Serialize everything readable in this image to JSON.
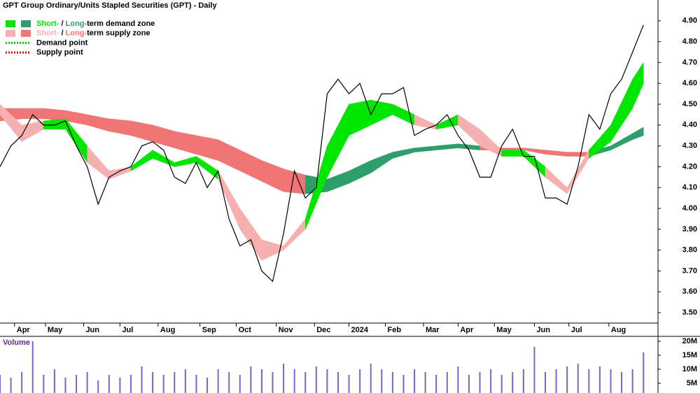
{
  "chart_data": [
    {
      "type": "line",
      "title": "GPT Group Ordinary/Units Stapled Securities (GPT) - Daily",
      "x": [
        0,
        6,
        12,
        18,
        24,
        30,
        36,
        42,
        48,
        54,
        60,
        66,
        72,
        78,
        84,
        90,
        96,
        102,
        108,
        114,
        120,
        126,
        132,
        138,
        144,
        150,
        156,
        162,
        168,
        174,
        180,
        186,
        192,
        198,
        204,
        210,
        216,
        222,
        228,
        234,
        240,
        246,
        252,
        258,
        264,
        270,
        276,
        282,
        288,
        294,
        300,
        306,
        312,
        318,
        324,
        330,
        336,
        342,
        348,
        354
      ],
      "values": [
        4.2,
        4.3,
        4.35,
        4.45,
        4.4,
        4.4,
        4.42,
        4.3,
        4.2,
        4.02,
        4.15,
        4.18,
        4.2,
        4.3,
        4.32,
        4.28,
        4.15,
        4.12,
        4.22,
        4.1,
        4.18,
        3.95,
        3.82,
        3.85,
        3.7,
        3.65,
        3.88,
        4.18,
        4.05,
        4.1,
        4.55,
        4.62,
        4.55,
        4.6,
        4.45,
        4.55,
        4.55,
        4.58,
        4.35,
        4.38,
        4.4,
        4.45,
        4.35,
        4.28,
        4.15,
        4.15,
        4.3,
        4.38,
        4.25,
        4.25,
        4.05,
        4.05,
        4.02,
        4.2,
        4.45,
        4.38,
        4.55,
        4.62,
        4.75,
        4.88
      ],
      "color": "#000000",
      "xlim": [
        0,
        362
      ],
      "xticks": [
        {
          "value": 8,
          "label": "Apr"
        },
        {
          "value": 25,
          "label": "May"
        },
        {
          "value": 46,
          "label": "Jun"
        },
        {
          "value": 66,
          "label": "Jul"
        },
        {
          "value": 87,
          "label": "Aug"
        },
        {
          "value": 110,
          "label": "Sep"
        },
        {
          "value": 130,
          "label": "Oct"
        },
        {
          "value": 152,
          "label": "Nov"
        },
        {
          "value": 173,
          "label": "Dec"
        },
        {
          "value": 192,
          "label": "2024"
        },
        {
          "value": 212,
          "label": "Feb"
        },
        {
          "value": 233,
          "label": "Mar"
        },
        {
          "value": 252,
          "label": "Apr"
        },
        {
          "value": 272,
          "label": "May"
        },
        {
          "value": 294,
          "label": "Jun"
        },
        {
          "value": 313,
          "label": "Jul"
        },
        {
          "value": 335,
          "label": "Aug"
        }
      ],
      "ylim": [
        3.45,
        5.0
      ],
      "yticks": [
        {
          "value": 3.5,
          "label": "3.50"
        },
        {
          "value": 3.6,
          "label": "3.60"
        },
        {
          "value": 3.7,
          "label": "3.70"
        },
        {
          "value": 3.8,
          "label": "3.80"
        },
        {
          "value": 3.9,
          "label": "3.90"
        },
        {
          "value": 4.0,
          "label": "4.00"
        },
        {
          "value": 4.1,
          "label": "4.10"
        },
        {
          "value": 4.2,
          "label": "4.20"
        },
        {
          "value": 4.3,
          "label": "4.30"
        },
        {
          "value": 4.4,
          "label": "4.40"
        },
        {
          "value": 4.5,
          "label": "4.50"
        },
        {
          "value": 4.6,
          "label": "4.60"
        },
        {
          "value": 4.7,
          "label": "4.70"
        },
        {
          "value": 4.8,
          "label": "4.80"
        },
        {
          "value": 4.9,
          "label": "4.90"
        }
      ],
      "zones": [
        {
          "x": [
            0,
            12,
            24,
            36,
            48,
            60,
            72,
            84,
            96,
            108,
            120,
            132,
            144,
            156,
            168,
            180,
            192,
            204,
            216,
            228,
            240,
            252,
            264,
            276,
            288,
            300,
            312,
            324,
            336,
            348,
            354
          ],
          "upper": [
            4.48,
            4.48,
            4.48,
            4.47,
            4.45,
            4.43,
            4.42,
            4.4,
            4.37,
            4.35,
            4.33,
            4.28,
            4.23,
            4.19,
            4.16,
            4.14,
            4.18,
            4.23,
            4.27,
            4.29,
            4.3,
            4.31,
            4.3,
            4.29,
            4.29,
            4.28,
            4.27,
            4.27,
            4.3,
            4.36,
            4.39
          ],
          "lower": [
            4.42,
            4.43,
            4.43,
            4.42,
            4.4,
            4.37,
            4.35,
            4.32,
            4.29,
            4.26,
            4.23,
            4.18,
            4.13,
            4.08,
            4.07,
            4.08,
            4.12,
            4.17,
            4.24,
            4.27,
            4.28,
            4.29,
            4.28,
            4.28,
            4.28,
            4.26,
            4.25,
            4.25,
            4.28,
            4.33,
            4.35
          ],
          "state": [
            "supply",
            "supply",
            "supply",
            "supply",
            "supply",
            "supply",
            "supply",
            "supply",
            "supply",
            "supply",
            "supply",
            "supply",
            "supply",
            "supply",
            "demand",
            "demand",
            "demand",
            "demand",
            "demand",
            "demand",
            "demand",
            "demand",
            "supply",
            "supply",
            "supply",
            "supply",
            "supply",
            "demand",
            "demand",
            "demand",
            "demand"
          ],
          "colors": {
            "demand": "#2e9e6a",
            "supply": "#f07575"
          }
        },
        {
          "x": [
            0,
            12,
            24,
            36,
            48,
            60,
            72,
            84,
            96,
            108,
            120,
            132,
            144,
            156,
            168,
            180,
            192,
            204,
            216,
            228,
            240,
            252,
            264,
            276,
            288,
            300,
            312,
            324,
            336,
            348,
            354
          ],
          "upper": [
            4.5,
            4.4,
            4.42,
            4.43,
            4.3,
            4.18,
            4.2,
            4.28,
            4.22,
            4.25,
            4.18,
            4.0,
            3.85,
            3.82,
            3.95,
            4.3,
            4.5,
            4.52,
            4.5,
            4.45,
            4.4,
            4.45,
            4.38,
            4.28,
            4.28,
            4.2,
            4.1,
            4.28,
            4.4,
            4.62,
            4.7
          ],
          "lower": [
            4.45,
            4.32,
            4.38,
            4.38,
            4.22,
            4.14,
            4.18,
            4.24,
            4.2,
            4.22,
            4.14,
            3.9,
            3.75,
            3.8,
            3.9,
            4.15,
            4.35,
            4.4,
            4.45,
            4.4,
            4.38,
            4.4,
            4.3,
            4.25,
            4.25,
            4.15,
            4.07,
            4.24,
            4.32,
            4.48,
            4.6
          ],
          "state": [
            "supply",
            "supply",
            "demand",
            "demand",
            "supply",
            "supply",
            "demand",
            "demand",
            "demand",
            "demand",
            "supply",
            "supply",
            "supply",
            "supply",
            "demand",
            "demand",
            "demand",
            "demand",
            "demand",
            "supply",
            "demand",
            "supply",
            "supply",
            "demand",
            "demand",
            "supply",
            "supply",
            "demand",
            "demand",
            "demand",
            "demand"
          ],
          "colors": {
            "demand": "#00e600",
            "supply": "#f7b0b0"
          }
        }
      ],
      "legend": [
        {
          "parts": [
            "Short-",
            " / ",
            "Long-",
            "term demand zone"
          ],
          "state": "demand"
        },
        {
          "parts": [
            "Short-",
            " / ",
            "Long-",
            "term supply zone"
          ],
          "state": "supply"
        },
        {
          "parts": [
            "Demand point"
          ],
          "color": "#00cc00"
        },
        {
          "parts": [
            "Supply point"
          ],
          "color": "#e00000"
        }
      ]
    },
    {
      "type": "bar",
      "title": "Volume",
      "x": [
        0,
        6,
        12,
        18,
        24,
        30,
        36,
        42,
        48,
        54,
        60,
        66,
        72,
        78,
        84,
        90,
        96,
        102,
        108,
        114,
        120,
        126,
        132,
        138,
        144,
        150,
        156,
        162,
        168,
        174,
        180,
        186,
        192,
        198,
        204,
        210,
        216,
        222,
        228,
        234,
        240,
        246,
        252,
        258,
        264,
        270,
        276,
        282,
        288,
        294,
        300,
        306,
        312,
        318,
        324,
        330,
        336,
        342,
        348,
        354
      ],
      "values": [
        8000000,
        7000000,
        9000000,
        20000000,
        8000000,
        10000000,
        7000000,
        8000000,
        9000000,
        6000000,
        8000000,
        7000000,
        8000000,
        11000000,
        9000000,
        8000000,
        9000000,
        10000000,
        8000000,
        7000000,
        10000000,
        9000000,
        8000000,
        11000000,
        10000000,
        9000000,
        12000000,
        10000000,
        9000000,
        11000000,
        10000000,
        9000000,
        8000000,
        10000000,
        12000000,
        10000000,
        9000000,
        8000000,
        10000000,
        9000000,
        8000000,
        9000000,
        11000000,
        8000000,
        9000000,
        10000000,
        8000000,
        9000000,
        10000000,
        18000000,
        9000000,
        10000000,
        11000000,
        12000000,
        10000000,
        11000000,
        10000000,
        9000000,
        10000000,
        16000000
      ],
      "color": "#7468c4",
      "xlim": [
        0,
        362
      ],
      "ylim": [
        1500000,
        21500000
      ],
      "yticks": [
        {
          "value": 5000000,
          "label": "5M"
        },
        {
          "value": 10000000,
          "label": "10M"
        },
        {
          "value": 15000000,
          "label": "15M"
        },
        {
          "value": 20000000,
          "label": "20M"
        }
      ]
    }
  ]
}
